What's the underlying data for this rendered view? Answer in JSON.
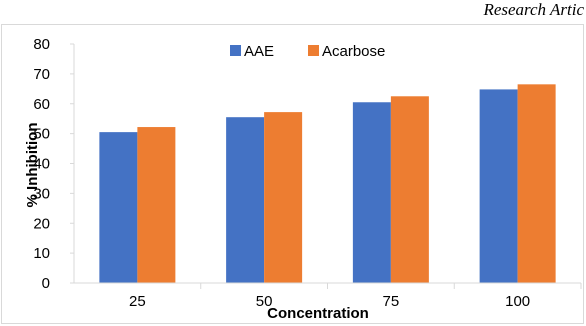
{
  "page": {
    "header_fragment": "Research Artic"
  },
  "chart_data": {
    "type": "bar",
    "title": "",
    "xlabel": "Concentration",
    "ylabel": "% Inhibition",
    "categories": [
      "25",
      "50",
      "75",
      "100"
    ],
    "series": [
      {
        "name": "AAE",
        "color": "#4472c4",
        "values": [
          50.5,
          55.5,
          60.5,
          64.8
        ]
      },
      {
        "name": "Acarbose",
        "color": "#ed7d31",
        "values": [
          52.2,
          57.2,
          62.5,
          66.5
        ]
      }
    ],
    "ylim": [
      0,
      80
    ],
    "yticks": [
      0,
      10,
      20,
      30,
      40,
      50,
      60,
      70,
      80
    ],
    "grid": false,
    "legend_position": "top-center"
  }
}
